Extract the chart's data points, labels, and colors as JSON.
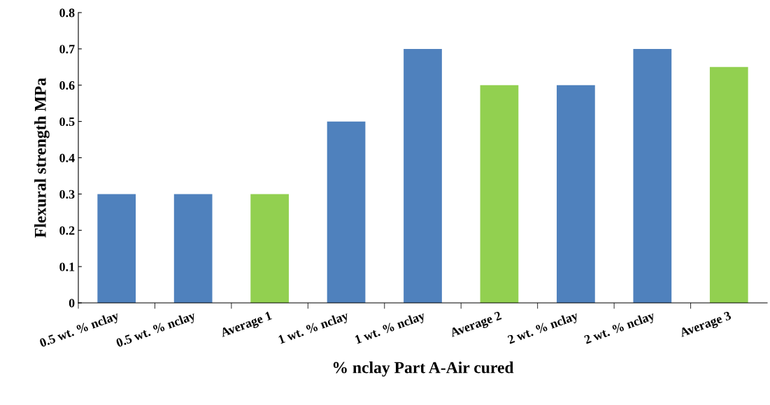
{
  "chart_data": {
    "type": "bar",
    "xlabel": "% nclay Part A-Air cured",
    "ylabel": "Flexural strength MPa",
    "categories": [
      "0.5 wt. % nclay",
      "0.5 wt. % nclay",
      "Average 1",
      "1 wt. % nclay",
      "1 wt. % nclay",
      "Average 2",
      "2 wt. % nclay",
      "2 wt. % nclay",
      "Average 3"
    ],
    "values": [
      0.3,
      0.3,
      0.3,
      0.5,
      0.7,
      0.6,
      0.6,
      0.7,
      0.65
    ],
    "colors": [
      "#4f81bd",
      "#4f81bd",
      "#92d050",
      "#4f81bd",
      "#4f81bd",
      "#92d050",
      "#4f81bd",
      "#4f81bd",
      "#92d050"
    ],
    "ylim": [
      0,
      0.8
    ],
    "yticks": [
      0,
      0.1,
      0.2,
      0.3,
      0.4,
      0.5,
      0.6,
      0.7,
      0.8
    ],
    "grid": false,
    "legend": false
  }
}
